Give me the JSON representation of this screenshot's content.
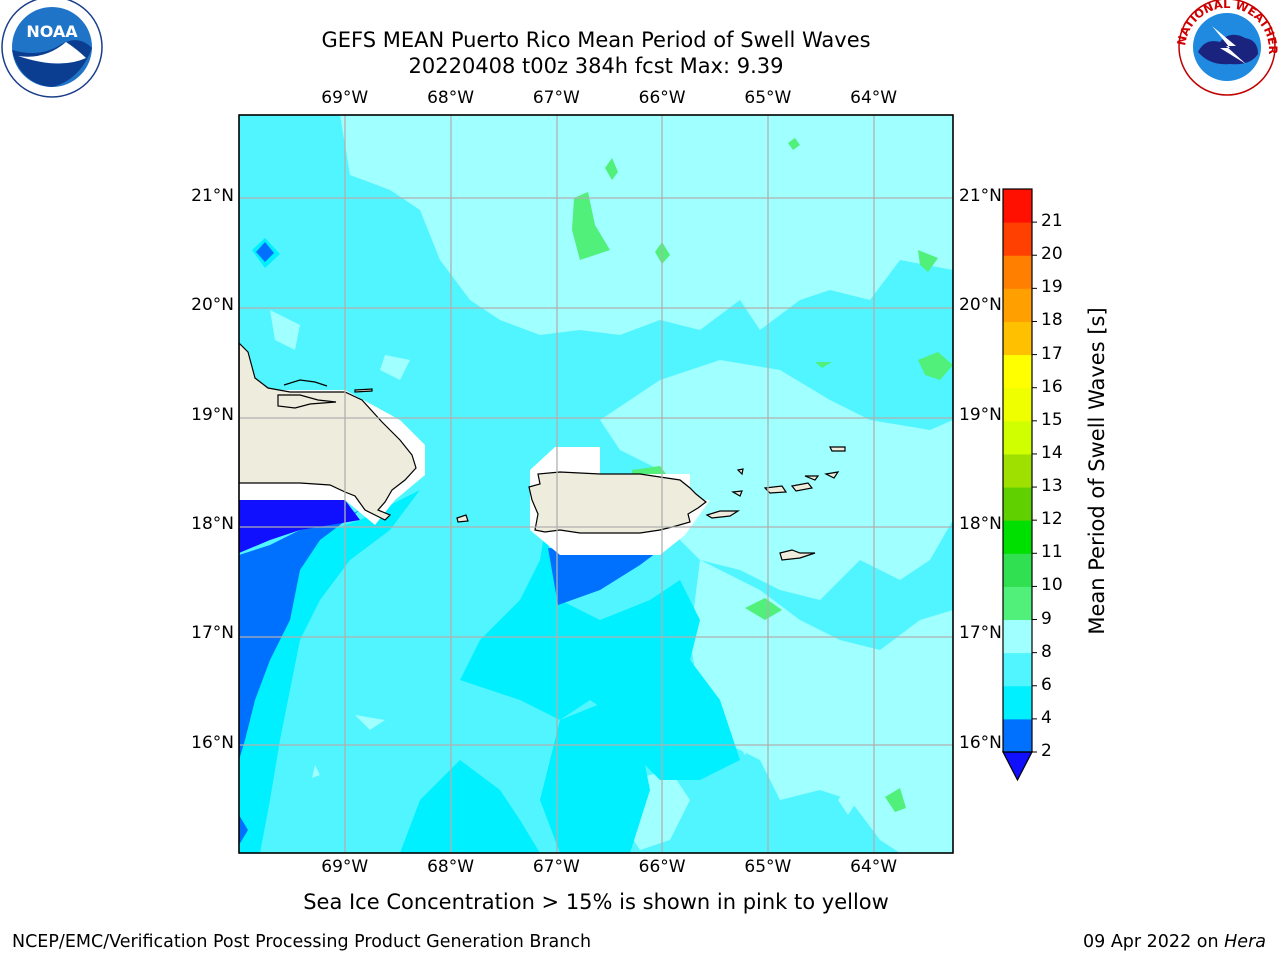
{
  "title": {
    "line1": "GEFS MEAN Puerto Rico Mean Period of Swell Waves",
    "line2": "20220408 t00z 384h fcst   Max: 9.39"
  },
  "map": {
    "lon_labels": [
      "69°W",
      "68°W",
      "67°W",
      "66°W",
      "65°W",
      "64°W"
    ],
    "lat_labels": [
      "21°N",
      "20°N",
      "19°N",
      "18°N",
      "17°N",
      "16°N"
    ],
    "lon_values": [
      -69,
      -68,
      -67,
      -66,
      -65,
      -64
    ],
    "lat_values": [
      21,
      20,
      19,
      18,
      17,
      16
    ],
    "lon_range": [
      -70,
      -63.25
    ],
    "lat_range": [
      15,
      21.75
    ],
    "land_color": "#eeecdc",
    "grid_color": "#b0b0b0"
  },
  "colorbar": {
    "title": "Mean Period of Swell Waves [s]",
    "levels": [
      "2",
      "4",
      "6",
      "8",
      "9",
      "10",
      "11",
      "12",
      "13",
      "14",
      "15",
      "16",
      "17",
      "18",
      "19",
      "20",
      "21"
    ],
    "colors": [
      "#0070ff",
      "#00f0ff",
      "#50f5ff",
      "#a0ffff",
      "#50f07a",
      "#30e050",
      "#00e000",
      "#60d000",
      "#a0e000",
      "#d0ff00",
      "#f0ff00",
      "#ffff00",
      "#ffc000",
      "#ffa000",
      "#ff8000",
      "#ff4000",
      "#ff1000"
    ],
    "under_color": "#1010ff"
  },
  "note": "Sea Ice Concentration > 15% is shown in pink to yellow",
  "footer": {
    "left": "NCEP/EMC/Verification Post Processing Product Generation Branch",
    "right_prefix": "09 Apr 2022 on ",
    "right_machine": "Hera"
  },
  "logos": {
    "noaa": "NOAA",
    "nws": "NATIONAL WEATHER SERVICE"
  }
}
